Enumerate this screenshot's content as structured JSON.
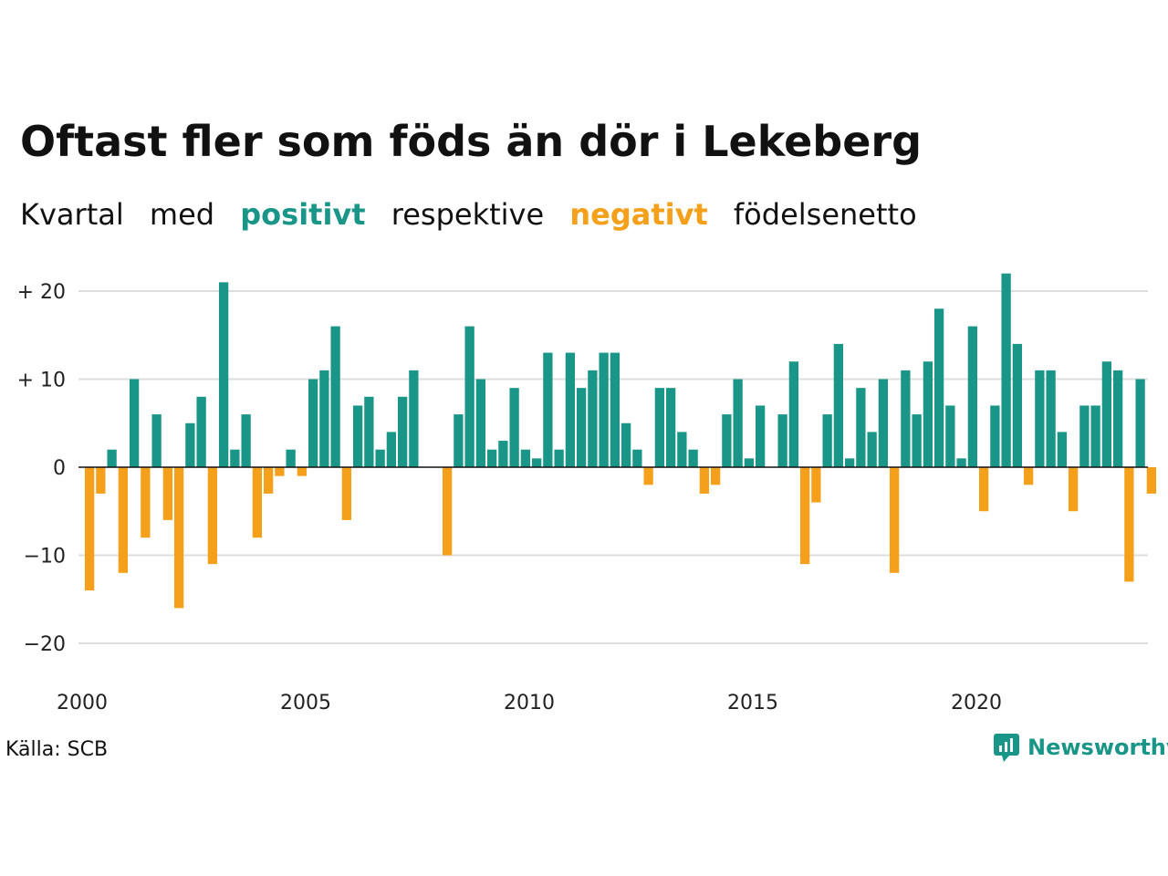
{
  "title": "Oftast fler som föds än dör i Lekeberg",
  "subtitle": {
    "w1": "Kvartal",
    "w2": "med",
    "positive": "positivt",
    "w3": "respektive",
    "negative": "negativt",
    "w4": "födelsenetto"
  },
  "source": "Källa: SCB",
  "brand": {
    "name": "Newsworthy",
    "icon": "bar-chart-bubble-icon"
  },
  "colors": {
    "positive": "#1a9688",
    "negative": "#f5a01a",
    "grid": "#dddddd",
    "text": "#111111"
  },
  "chart_data": {
    "type": "bar",
    "x_start": "2000 Q1",
    "quarters_per_year": 4,
    "ylim": [
      -22,
      22
    ],
    "yticks": [
      {
        "value": 20,
        "label": "+ 20"
      },
      {
        "value": 10,
        "label": "+ 10"
      },
      {
        "value": 0,
        "label": "0"
      },
      {
        "value": -10,
        "label": "−10"
      },
      {
        "value": -20,
        "label": "−20"
      }
    ],
    "xticks": [
      "2000",
      "2005",
      "2010",
      "2015",
      "2020"
    ],
    "grid": true,
    "values": [
      -14,
      -3,
      2,
      -12,
      10,
      -8,
      6,
      -6,
      -16,
      5,
      8,
      -11,
      21,
      2,
      6,
      -8,
      -3,
      -1,
      2,
      -1,
      10,
      11,
      16,
      -6,
      7,
      8,
      2,
      4,
      8,
      11,
      0,
      0,
      -10,
      6,
      16,
      10,
      2,
      3,
      9,
      2,
      1,
      13,
      2,
      13,
      9,
      11,
      13,
      13,
      5,
      2,
      -2,
      9,
      9,
      4,
      2,
      -3,
      -2,
      6,
      10,
      1,
      7,
      0,
      6,
      12,
      -11,
      -4,
      6,
      14,
      1,
      9,
      4,
      10,
      -12,
      11,
      6,
      12,
      18,
      7,
      1,
      16,
      -5,
      7,
      22,
      14,
      -2,
      11,
      11,
      4,
      -5,
      7,
      7,
      12,
      11,
      -13,
      10,
      -3
    ]
  }
}
